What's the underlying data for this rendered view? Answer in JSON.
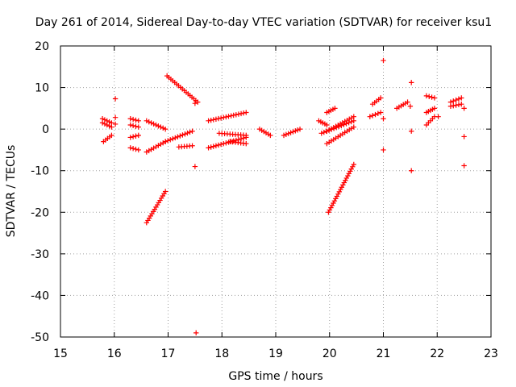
{
  "chart_data": {
    "type": "scatter",
    "title": "Day 261 of 2014, Sidereal Day-to-day VTEC variation (SDTVAR) for receiver ksu1",
    "xlabel": "GPS time / hours",
    "ylabel": "SDTVAR / TECUs",
    "xlim": [
      15,
      23
    ],
    "ylim": [
      -50,
      20
    ],
    "xticks": [
      15,
      16,
      17,
      18,
      19,
      20,
      21,
      22,
      23
    ],
    "yticks": [
      -50,
      -40,
      -30,
      -20,
      -10,
      0,
      10,
      20
    ],
    "grid": true,
    "marker": "+",
    "color": "#ff0000",
    "segments": [
      {
        "x0": 15.78,
        "y0": 2.5,
        "x1": 15.95,
        "y1": 1.5
      },
      {
        "x0": 15.78,
        "y0": 1.5,
        "x1": 15.95,
        "y1": 0.5
      },
      {
        "x0": 15.8,
        "y0": -3.0,
        "x1": 15.95,
        "y1": -1.5
      },
      {
        "x0": 16.3,
        "y0": 2.5,
        "x1": 16.45,
        "y1": 2.0
      },
      {
        "x0": 16.3,
        "y0": 1.0,
        "x1": 16.45,
        "y1": 0.5
      },
      {
        "x0": 16.3,
        "y0": -2.0,
        "x1": 16.45,
        "y1": -1.5
      },
      {
        "x0": 16.3,
        "y0": -4.5,
        "x1": 16.45,
        "y1": -5.0
      },
      {
        "x0": 16.6,
        "y0": 2.0,
        "x1": 16.95,
        "y1": 0.0
      },
      {
        "x0": 16.6,
        "y0": -5.5,
        "x1": 16.95,
        "y1": -3.0
      },
      {
        "x0": 16.95,
        "y0": -3.0,
        "x1": 17.45,
        "y1": -0.5
      },
      {
        "x0": 16.98,
        "y0": 12.8,
        "x1": 17.55,
        "y1": 6.5
      },
      {
        "x0": 17.2,
        "y0": -4.3,
        "x1": 17.45,
        "y1": -4.0
      },
      {
        "x0": 16.6,
        "y0": -22.5,
        "x1": 16.95,
        "y1": -15.0
      },
      {
        "x0": 17.75,
        "y0": 2.0,
        "x1": 18.45,
        "y1": 4.0
      },
      {
        "x0": 17.75,
        "y0": -4.5,
        "x1": 18.45,
        "y1": -2.0
      },
      {
        "x0": 17.95,
        "y0": -1.0,
        "x1": 18.45,
        "y1": -1.5
      },
      {
        "x0": 18.15,
        "y0": -3.0,
        "x1": 18.45,
        "y1": -3.5
      },
      {
        "x0": 18.7,
        "y0": 0.0,
        "x1": 18.9,
        "y1": -1.5
      },
      {
        "x0": 19.15,
        "y0": -1.5,
        "x1": 19.45,
        "y1": 0.0
      },
      {
        "x0": 19.8,
        "y0": 2.0,
        "x1": 19.95,
        "y1": 1.0
      },
      {
        "x0": 19.85,
        "y0": -1.0,
        "x1": 20.45,
        "y1": 2.0
      },
      {
        "x0": 19.95,
        "y0": 4.0,
        "x1": 20.1,
        "y1": 5.0
      },
      {
        "x0": 19.95,
        "y0": -0.5,
        "x1": 20.45,
        "y1": 3.0
      },
      {
        "x0": 19.95,
        "y0": -3.5,
        "x1": 20.45,
        "y1": 0.5
      },
      {
        "x0": 19.98,
        "y0": -20.0,
        "x1": 20.45,
        "y1": -8.5
      },
      {
        "x0": 20.75,
        "y0": 3.0,
        "x1": 20.95,
        "y1": 4.0
      },
      {
        "x0": 20.8,
        "y0": 6.0,
        "x1": 20.95,
        "y1": 7.5
      },
      {
        "x0": 21.25,
        "y0": 5.0,
        "x1": 21.45,
        "y1": 6.5
      },
      {
        "x0": 21.8,
        "y0": 8.0,
        "x1": 21.95,
        "y1": 7.5
      },
      {
        "x0": 21.8,
        "y0": 4.0,
        "x1": 21.95,
        "y1": 5.0
      },
      {
        "x0": 21.8,
        "y0": 1.0,
        "x1": 21.95,
        "y1": 3.0
      },
      {
        "x0": 22.25,
        "y0": 6.5,
        "x1": 22.45,
        "y1": 7.5
      },
      {
        "x0": 22.25,
        "y0": 5.5,
        "x1": 22.45,
        "y1": 6.0
      }
    ],
    "points": [
      {
        "x": 16.02,
        "y": 7.3
      },
      {
        "x": 16.02,
        "y": 2.8
      },
      {
        "x": 16.02,
        "y": 1.2
      },
      {
        "x": 17.5,
        "y": 6.2
      },
      {
        "x": 17.5,
        "y": -9.0
      },
      {
        "x": 17.52,
        "y": -49.0
      },
      {
        "x": 21.0,
        "y": 16.5
      },
      {
        "x": 21.0,
        "y": 2.5
      },
      {
        "x": 21.0,
        "y": -5.0
      },
      {
        "x": 21.52,
        "y": 11.2
      },
      {
        "x": 21.52,
        "y": -0.5
      },
      {
        "x": 21.52,
        "y": -10.0
      },
      {
        "x": 21.5,
        "y": 5.5
      },
      {
        "x": 22.02,
        "y": 3.0
      },
      {
        "x": 22.5,
        "y": 5.0
      },
      {
        "x": 22.5,
        "y": -1.8
      },
      {
        "x": 22.5,
        "y": -8.8
      }
    ]
  }
}
